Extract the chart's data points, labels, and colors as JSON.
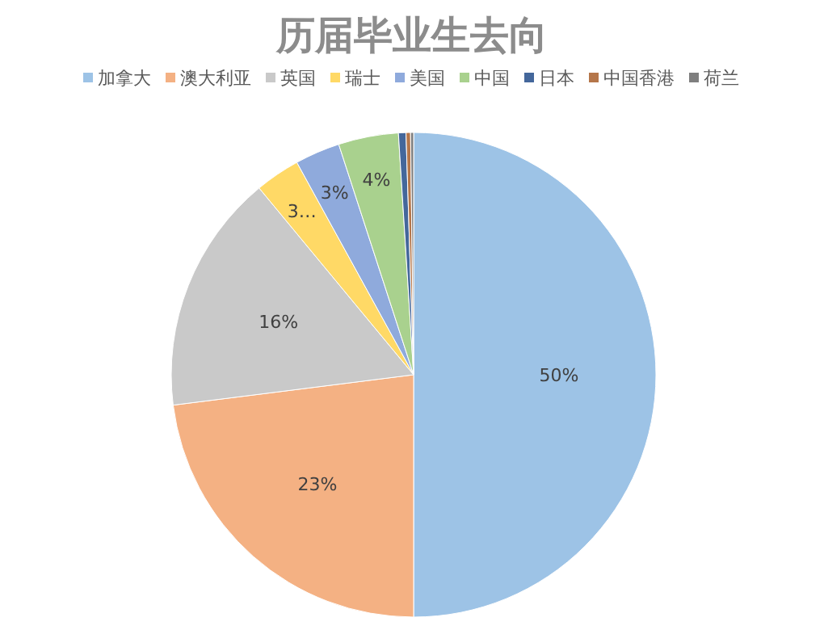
{
  "chart_data": {
    "type": "pie",
    "title": "历届毕业生去向",
    "legend": "top",
    "categories": [
      "加拿大",
      "澳大利亚",
      "英国",
      "瑞士",
      "美国",
      "中国",
      "日本",
      "中国香港",
      "荷兰"
    ],
    "values": [
      50,
      23,
      16,
      3,
      3,
      4,
      0.5,
      0.3,
      0.2
    ],
    "colors": [
      "#9dc3e6",
      "#f4b183",
      "#c9c9c9",
      "#ffd966",
      "#8faadc",
      "#a9d18e",
      "#44679b",
      "#b5764a",
      "#7f7f7f"
    ],
    "value_labels": [
      "50%",
      "23%",
      "16%",
      "3…",
      "3%",
      "4%",
      null,
      null,
      null
    ]
  }
}
